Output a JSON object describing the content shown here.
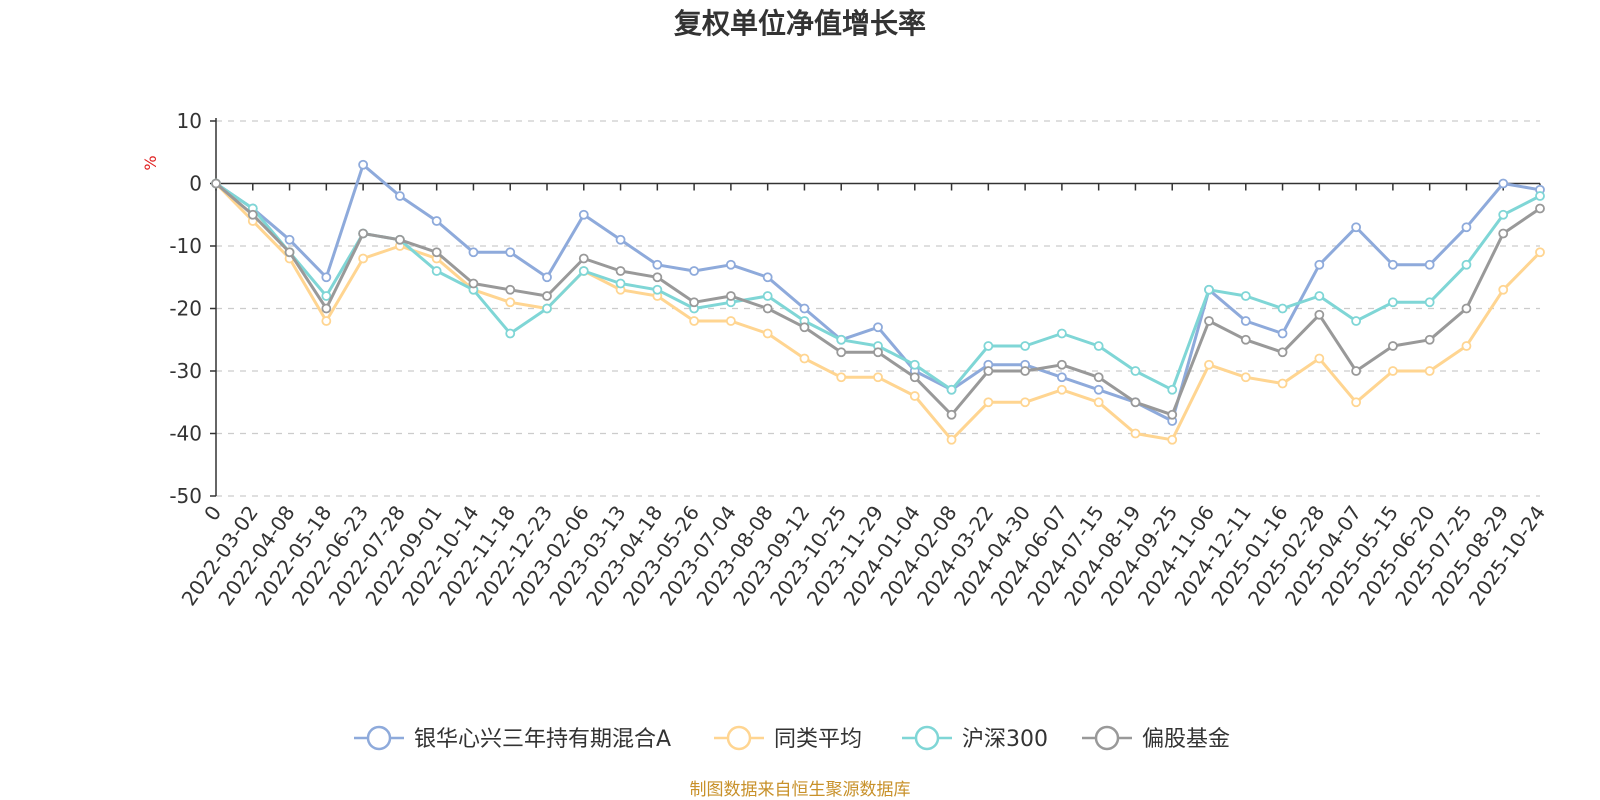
{
  "chart_data": {
    "type": "line",
    "title": "复权单位净值增长率",
    "ylabel": "%",
    "ylim": [
      -50,
      10
    ],
    "yticks": [
      "10",
      "0",
      "-10",
      "-20",
      "-30",
      "-40",
      "-50"
    ],
    "ytick_values": [
      10,
      0,
      -10,
      -20,
      -30,
      -40,
      -50
    ],
    "categories": [
      "0",
      "2022-03-02",
      "2022-04-08",
      "2022-05-18",
      "2022-06-23",
      "2022-07-28",
      "2022-09-01",
      "2022-10-14",
      "2022-11-18",
      "2022-12-23",
      "2023-02-06",
      "2023-03-13",
      "2023-04-18",
      "2023-05-26",
      "2023-07-04",
      "2023-08-08",
      "2023-09-12",
      "2023-10-25",
      "2023-11-29",
      "2024-01-04",
      "2024-02-08",
      "2024-03-22",
      "2024-04-30",
      "2024-06-07",
      "2024-07-15",
      "2024-08-19",
      "2024-09-25",
      "2024-11-06",
      "2024-12-11",
      "2025-01-16",
      "2025-02-28",
      "2025-04-07",
      "2025-05-15",
      "2025-06-20",
      "2025-07-25",
      "2025-08-29",
      "2025-10-24"
    ],
    "grid": "dashed-horizontal",
    "legend_position": "bottom-center",
    "series": [
      {
        "name": "银华心兴三年持有期混合A",
        "color": "#8eaadb",
        "values": [
          0,
          -4,
          -9,
          -15,
          3,
          -2,
          -6,
          -11,
          -11,
          -15,
          -5,
          -9,
          -13,
          -14,
          -13,
          -15,
          -20,
          -25,
          -23,
          -30,
          -33,
          -29,
          -29,
          -31,
          -33,
          -35,
          -38,
          -17,
          -22,
          -24,
          -13,
          -7,
          -13,
          -13,
          -7,
          0,
          -1
        ]
      },
      {
        "name": "同类平均",
        "color": "#ffd591",
        "values": [
          0,
          -6,
          -12,
          -22,
          -12,
          -10,
          -12,
          -17,
          -19,
          -20,
          -14,
          -17,
          -18,
          -22,
          -22,
          -24,
          -28,
          -31,
          -31,
          -34,
          -41,
          -35,
          -35,
          -33,
          -35,
          -40,
          -41,
          -29,
          -31,
          -32,
          -28,
          -35,
          -30,
          -30,
          -26,
          -17,
          -11
        ]
      },
      {
        "name": "沪深300",
        "color": "#7fd6d6",
        "values": [
          0,
          -4,
          -11,
          -18,
          -8,
          -9,
          -14,
          -17,
          -24,
          -20,
          -14,
          -16,
          -17,
          -20,
          -19,
          -18,
          -22,
          -25,
          -26,
          -29,
          -33,
          -26,
          -26,
          -24,
          -26,
          -30,
          -33,
          -17,
          -18,
          -20,
          -18,
          -22,
          -19,
          -19,
          -13,
          -5,
          -2
        ]
      },
      {
        "name": "偏股基金",
        "color": "#999999",
        "values": [
          0,
          -5,
          -11,
          -20,
          -8,
          -9,
          -11,
          -16,
          -17,
          -18,
          -12,
          -14,
          -15,
          -19,
          -18,
          -20,
          -23,
          -27,
          -27,
          -31,
          -37,
          -30,
          -30,
          -29,
          -31,
          -35,
          -37,
          -22,
          -25,
          -27,
          -21,
          -30,
          -26,
          -25,
          -20,
          -8,
          -4
        ]
      }
    ]
  },
  "footer": "制图数据来自恒生聚源数据库"
}
